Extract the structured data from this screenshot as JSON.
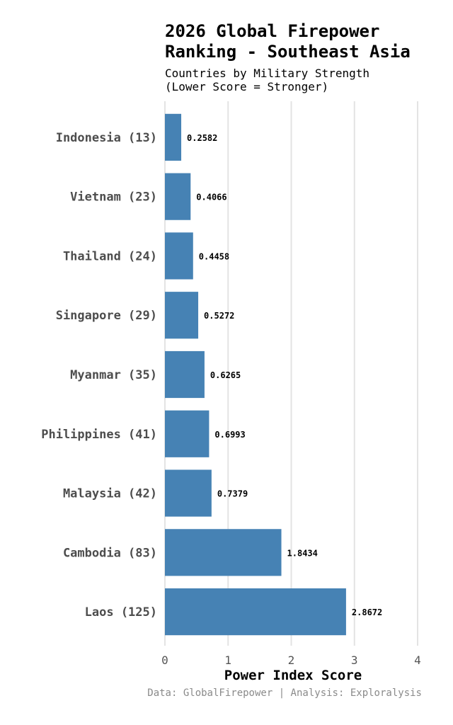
{
  "chart_data": {
    "type": "bar",
    "orientation": "horizontal",
    "title": [
      "2026 Global Firepower",
      "Ranking - Southeast Asia"
    ],
    "subtitle": [
      "Countries by Military Strength",
      "(Lower Score = Stronger)"
    ],
    "xlabel": "Power Index Score",
    "ylabel": "",
    "categories": [
      "Indonesia (13)",
      "Vietnam (23)",
      "Thailand (24)",
      "Singapore (29)",
      "Myanmar (35)",
      "Philippines (41)",
      "Malaysia (42)",
      "Cambodia (83)",
      "Laos (125)"
    ],
    "values": [
      0.2582,
      0.4066,
      0.4458,
      0.5272,
      0.6265,
      0.6993,
      0.7379,
      1.8434,
      2.8672
    ],
    "value_labels": [
      "0.2582",
      "0.4066",
      "0.4458",
      "0.5272",
      "0.6265",
      "0.6993",
      "0.7379",
      "1.8434",
      "2.8672"
    ],
    "xlim": [
      0,
      4
    ],
    "x_ticks": [
      0,
      1,
      2,
      3,
      4
    ],
    "x_tick_labels": [
      "0",
      "1",
      "2",
      "3",
      "4"
    ],
    "grid": "vertical",
    "legend": "none",
    "bar_color": "#4682b4",
    "grid_color": "#e3e3e3"
  },
  "caption": "Data: GlobalFirepower | Analysis: Exploralysis"
}
